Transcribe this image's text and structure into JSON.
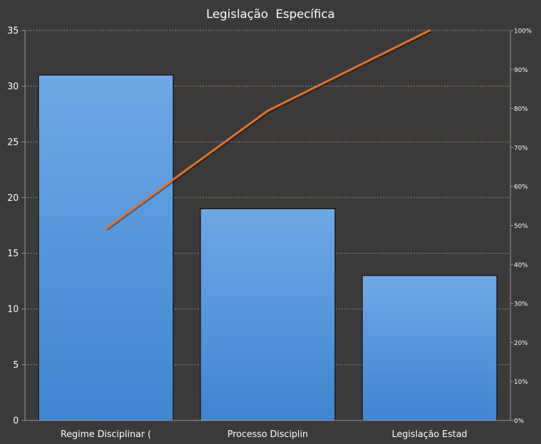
{
  "chart_data": {
    "type": "bar",
    "title": "Legislação  Específica",
    "categories": [
      "Regime Disciplinar (",
      "Processo Disciplin",
      "Legislação Estad"
    ],
    "series": [
      {
        "type": "bar",
        "values": [
          31,
          19,
          13
        ]
      },
      {
        "type": "line",
        "axis": "right",
        "values": [
          49.2,
          79.4,
          100
        ]
      }
    ],
    "y_left": {
      "range": [
        0,
        35
      ],
      "ticks": [
        "0",
        "5",
        "10",
        "15",
        "20",
        "25",
        "30",
        "35"
      ]
    },
    "y_right": {
      "range": [
        0,
        100
      ],
      "ticks": [
        "0%",
        "10%",
        "20%",
        "30%",
        "40%",
        "50%",
        "60%",
        "70%",
        "80%",
        "90%",
        "100%"
      ]
    },
    "grid": true,
    "legend": "none",
    "colors": {
      "background": "#3c3a38",
      "bar": "#4a8fd6",
      "line": "#e8722a",
      "text": "#ffffff",
      "grid": "#8c8c8c"
    }
  }
}
